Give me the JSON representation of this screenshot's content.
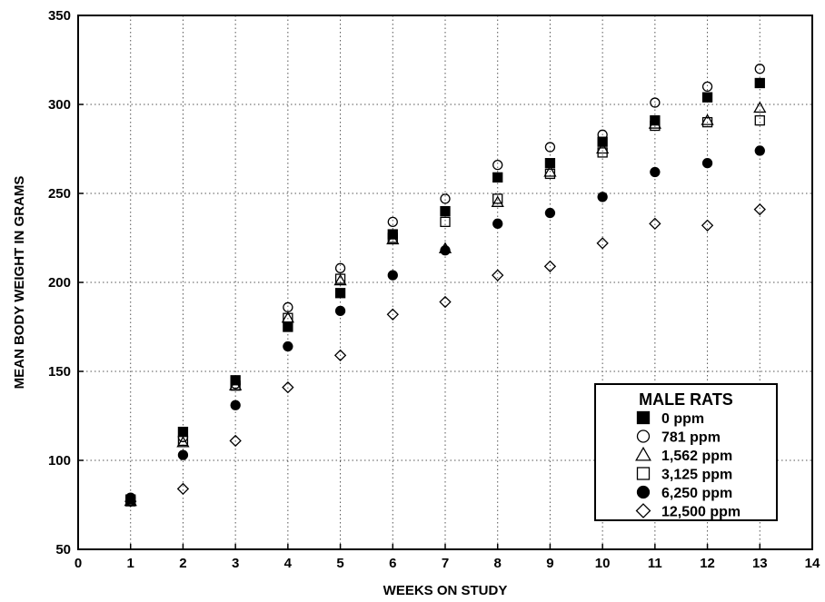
{
  "chart_data": {
    "type": "scatter",
    "title": "",
    "xlabel": "WEEKS ON STUDY",
    "ylabel": "MEAN BODY WEIGHT IN GRAMS",
    "xlim": [
      0,
      14
    ],
    "ylim": [
      50,
      350
    ],
    "xticks": [
      0,
      1,
      2,
      3,
      4,
      5,
      6,
      7,
      8,
      9,
      10,
      11,
      12,
      13,
      14
    ],
    "yticks": [
      50,
      100,
      150,
      200,
      250,
      300,
      350
    ],
    "grid": true,
    "legend_position": "bottom-right",
    "legend_title": "MALE RATS",
    "series": [
      {
        "name": "0 ppm",
        "marker": "square-filled",
        "x": [
          1,
          2,
          3,
          4,
          5,
          6,
          7,
          8,
          9,
          10,
          11,
          12,
          13
        ],
        "y": [
          78,
          116,
          145,
          175,
          194,
          227,
          240,
          259,
          267,
          279,
          291,
          304,
          312
        ]
      },
      {
        "name": "781 ppm",
        "marker": "circle-open",
        "x": [
          1,
          2,
          3,
          4,
          5,
          6,
          7,
          8,
          9,
          10,
          11,
          12,
          13
        ],
        "y": [
          77,
          113,
          143,
          186,
          208,
          234,
          247,
          266,
          276,
          283,
          301,
          310,
          320
        ]
      },
      {
        "name": "1,562 ppm",
        "marker": "triangle-open",
        "x": [
          1,
          2,
          3,
          4,
          5,
          6,
          7,
          8,
          9,
          10,
          11,
          12,
          13
        ],
        "y": [
          77,
          110,
          142,
          180,
          201,
          224,
          219,
          245,
          262,
          275,
          289,
          291,
          298
        ]
      },
      {
        "name": "3,125 ppm",
        "marker": "square-open",
        "x": [
          1,
          2,
          3,
          4,
          5,
          6,
          7,
          8,
          9,
          10,
          11,
          12,
          13
        ],
        "y": [
          77,
          111,
          142,
          180,
          202,
          225,
          234,
          247,
          261,
          273,
          288,
          290,
          291
        ]
      },
      {
        "name": "6,250 ppm",
        "marker": "circle-filled",
        "x": [
          1,
          2,
          3,
          4,
          5,
          6,
          7,
          8,
          9,
          10,
          11,
          12,
          13
        ],
        "y": [
          79,
          103,
          131,
          164,
          184,
          204,
          218,
          233,
          239,
          248,
          262,
          267,
          274
        ]
      },
      {
        "name": "12,500 ppm",
        "marker": "diamond-open",
        "x": [
          1,
          2,
          3,
          4,
          5,
          6,
          7,
          8,
          9,
          10,
          11,
          12,
          13
        ],
        "y": [
          77,
          84,
          111,
          141,
          159,
          182,
          189,
          204,
          209,
          222,
          233,
          232,
          241
        ]
      }
    ]
  }
}
